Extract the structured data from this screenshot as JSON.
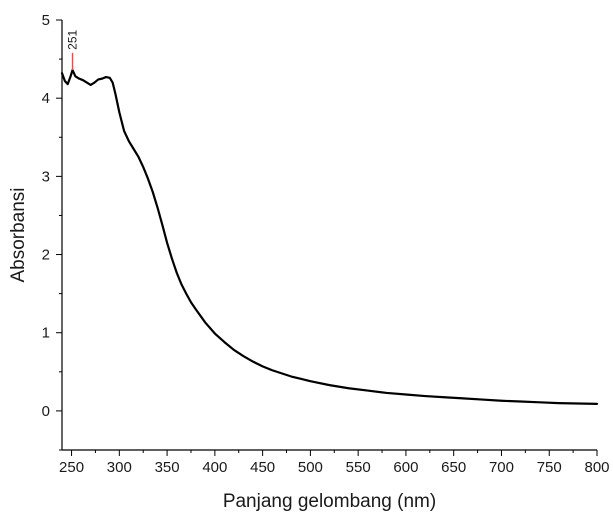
{
  "chart_data": {
    "type": "line",
    "title": "",
    "xlabel": "Panjang gelombang (nm)",
    "ylabel": "Absorbansi",
    "xlim": [
      240,
      800
    ],
    "ylim": [
      -0.5,
      5
    ],
    "grid": false,
    "x_ticks": [
      250,
      300,
      350,
      400,
      450,
      500,
      550,
      600,
      650,
      700,
      750,
      800
    ],
    "y_ticks": [
      0,
      1,
      2,
      3,
      4,
      5
    ],
    "series": [
      {
        "color": "#000000",
        "points": [
          [
            240,
            4.32
          ],
          [
            243,
            4.22
          ],
          [
            246,
            4.18
          ],
          [
            249,
            4.28
          ],
          [
            251,
            4.36
          ],
          [
            254,
            4.28
          ],
          [
            258,
            4.25
          ],
          [
            262,
            4.23
          ],
          [
            266,
            4.2
          ],
          [
            270,
            4.17
          ],
          [
            274,
            4.2
          ],
          [
            278,
            4.24
          ],
          [
            282,
            4.25
          ],
          [
            286,
            4.27
          ],
          [
            290,
            4.26
          ],
          [
            293,
            4.2
          ],
          [
            296,
            4.05
          ],
          [
            300,
            3.82
          ],
          [
            305,
            3.58
          ],
          [
            310,
            3.45
          ],
          [
            315,
            3.35
          ],
          [
            320,
            3.25
          ],
          [
            325,
            3.12
          ],
          [
            330,
            2.97
          ],
          [
            335,
            2.8
          ],
          [
            340,
            2.6
          ],
          [
            345,
            2.38
          ],
          [
            350,
            2.15
          ],
          [
            355,
            1.95
          ],
          [
            360,
            1.77
          ],
          [
            365,
            1.62
          ],
          [
            370,
            1.5
          ],
          [
            375,
            1.39
          ],
          [
            380,
            1.3
          ],
          [
            390,
            1.13
          ],
          [
            400,
            0.99
          ],
          [
            410,
            0.88
          ],
          [
            420,
            0.78
          ],
          [
            430,
            0.7
          ],
          [
            440,
            0.63
          ],
          [
            450,
            0.57
          ],
          [
            460,
            0.52
          ],
          [
            470,
            0.48
          ],
          [
            480,
            0.44
          ],
          [
            490,
            0.41
          ],
          [
            500,
            0.38
          ],
          [
            520,
            0.33
          ],
          [
            540,
            0.29
          ],
          [
            560,
            0.26
          ],
          [
            580,
            0.23
          ],
          [
            600,
            0.21
          ],
          [
            620,
            0.19
          ],
          [
            640,
            0.175
          ],
          [
            660,
            0.16
          ],
          [
            680,
            0.145
          ],
          [
            700,
            0.13
          ],
          [
            720,
            0.12
          ],
          [
            740,
            0.11
          ],
          [
            760,
            0.1
          ],
          [
            780,
            0.095
          ],
          [
            800,
            0.09
          ]
        ]
      }
    ],
    "annotations": [
      {
        "text": "251",
        "x": 251,
        "y_from": 4.36,
        "y_to": 4.58,
        "color": "#d9534f"
      }
    ]
  }
}
